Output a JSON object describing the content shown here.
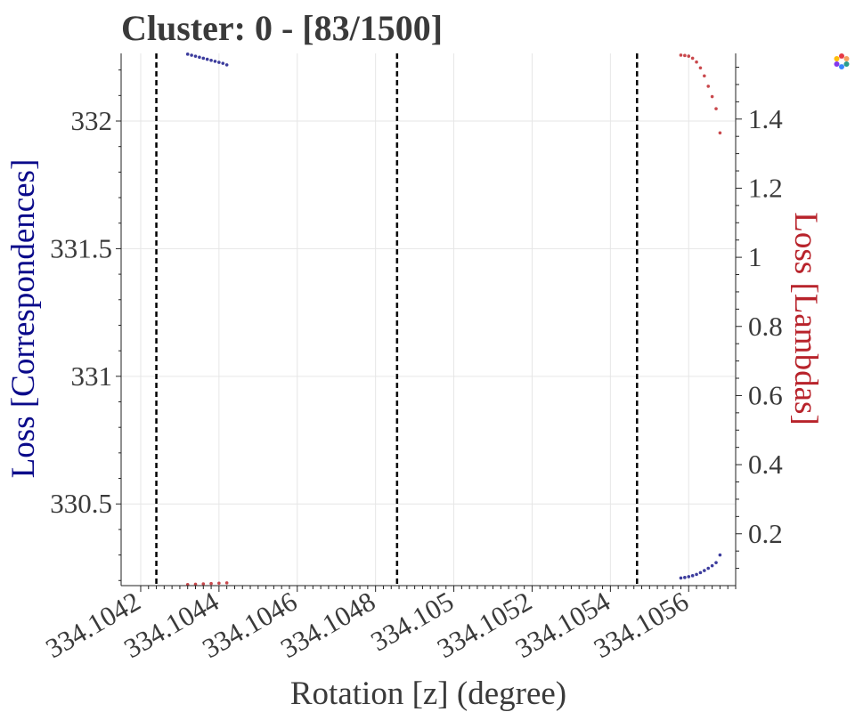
{
  "chart_data": {
    "type": "scatter",
    "title": "Cluster: 0 - [83/1500]",
    "xlabel": "Rotation [z] (degree)",
    "ylabel_left": "Loss [Correspondences]",
    "ylabel_right": "Loss [Lambdas]",
    "xlim": [
      334.10415,
      334.10572
    ],
    "ylim_left": [
      330.18,
      332.265
    ],
    "ylim_right": [
      0.05,
      1.59
    ],
    "grid": true,
    "x_ticks": [
      334.1042,
      334.1044,
      334.1046,
      334.1048,
      334.105,
      334.1052,
      334.1054,
      334.1056
    ],
    "x_tick_labels": [
      "334.1042",
      "334.1044",
      "334.1046",
      "334.1048",
      "334.105",
      "334.1052",
      "334.1054",
      "334.1056"
    ],
    "y_left_ticks": [
      330.5,
      331,
      331.5,
      332
    ],
    "y_left_tick_labels": [
      "330.5",
      "331",
      "331.5",
      "332"
    ],
    "y_right_ticks": [
      0.2,
      0.4,
      0.6,
      0.8,
      1,
      1.2,
      1.4
    ],
    "y_right_tick_labels": [
      "0.2",
      "0.4",
      "0.6",
      "0.8",
      "1",
      "1.2",
      "1.4"
    ],
    "vertical_lines": [
      334.10424,
      334.104855,
      334.105468
    ],
    "colors": {
      "correspondences": "#1a1a8c",
      "lambdas": "#c0282d",
      "text": "#3a3a3a",
      "grid": "#e6e6e6"
    },
    "series": [
      {
        "axis": "left",
        "points": [
          [
            334.10432,
            332.262
          ],
          [
            334.10433,
            332.258
          ],
          [
            334.10434,
            332.254
          ],
          [
            334.10435,
            332.25
          ],
          [
            334.10436,
            332.246
          ],
          [
            334.10437,
            332.242
          ],
          [
            334.10438,
            332.238
          ],
          [
            334.10439,
            332.234
          ],
          [
            334.1044,
            332.23
          ],
          [
            334.10441,
            332.226
          ],
          [
            334.10442,
            332.22
          ],
          [
            334.10558,
            330.21
          ],
          [
            334.10559,
            330.212
          ],
          [
            334.1056,
            330.215
          ],
          [
            334.10561,
            330.219
          ],
          [
            334.10562,
            330.224
          ],
          [
            334.10563,
            330.231
          ],
          [
            334.10564,
            330.239
          ],
          [
            334.10565,
            330.248
          ],
          [
            334.10566,
            330.258
          ],
          [
            334.10567,
            330.27
          ],
          [
            334.10568,
            330.3
          ]
        ]
      },
      {
        "axis": "right",
        "points": [
          [
            334.10558,
            1.585
          ],
          [
            334.10559,
            1.584
          ],
          [
            334.1056,
            1.582
          ],
          [
            334.10561,
            1.576
          ],
          [
            334.10562,
            1.565
          ],
          [
            334.10563,
            1.548
          ],
          [
            334.10564,
            1.525
          ],
          [
            334.10565,
            1.495
          ],
          [
            334.10566,
            1.465
          ],
          [
            334.10567,
            1.43
          ],
          [
            334.10568,
            1.36
          ],
          [
            334.10432,
            0.053
          ],
          [
            334.10434,
            0.054
          ],
          [
            334.10436,
            0.055
          ],
          [
            334.10438,
            0.056
          ],
          [
            334.1044,
            0.057
          ],
          [
            334.10442,
            0.058
          ]
        ]
      }
    ]
  },
  "modebar": {
    "logo": "plotly-logo-icon"
  }
}
